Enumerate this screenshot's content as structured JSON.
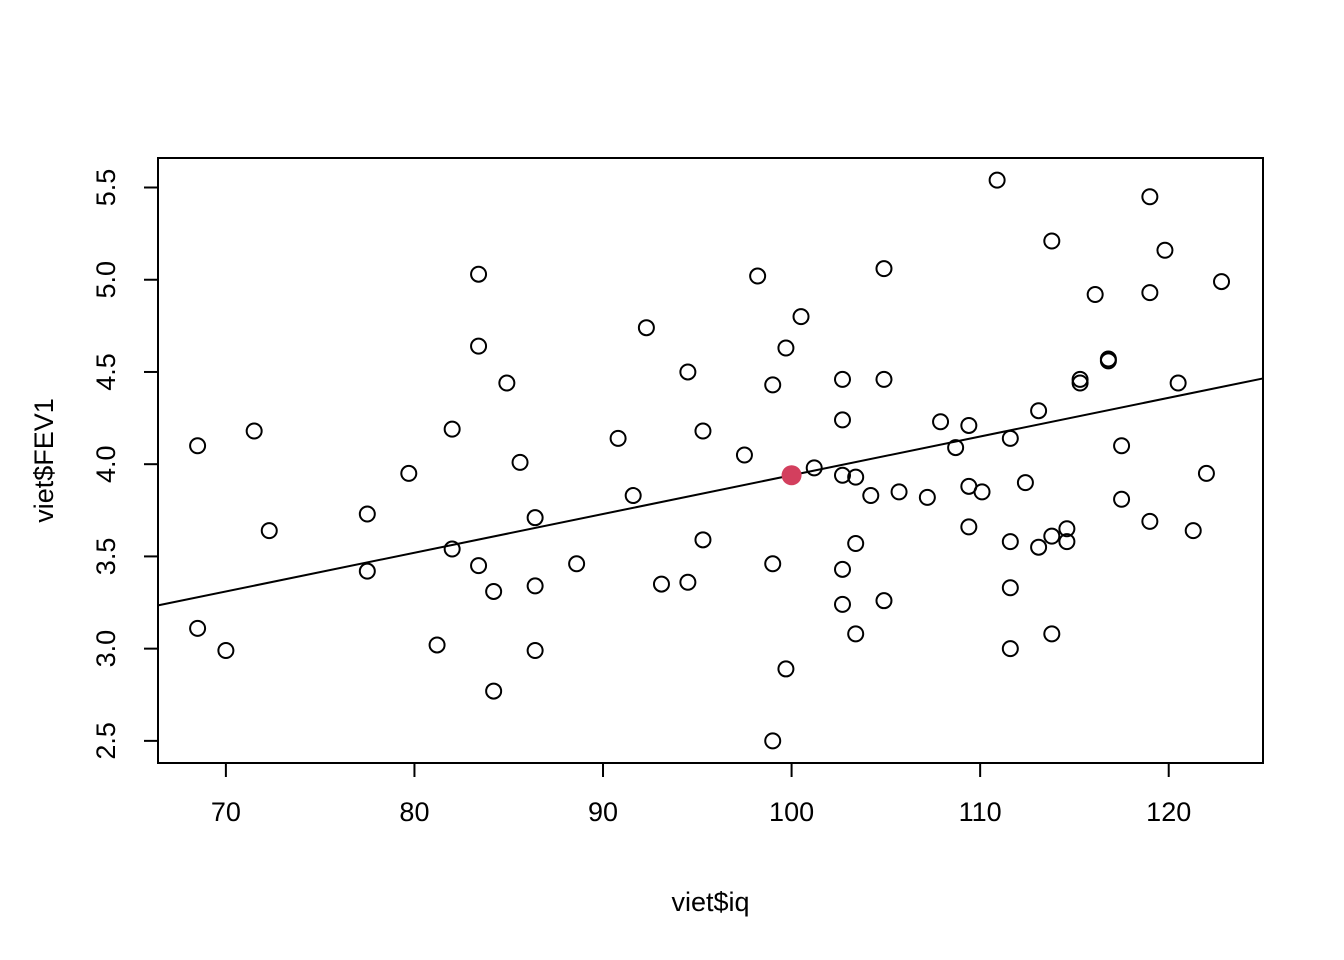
{
  "chart_data": {
    "type": "scatter",
    "xlabel": "viet$iq",
    "ylabel": "viet$FEV1",
    "xlim": [
      66.4,
      125
    ],
    "ylim": [
      2.38,
      5.66
    ],
    "x_ticks": [
      70,
      80,
      90,
      100,
      110,
      120
    ],
    "y_ticks": [
      2.5,
      3.0,
      3.5,
      4.0,
      4.5,
      5.0,
      5.5
    ],
    "x_tick_labels": [
      "70",
      "80",
      "90",
      "100",
      "110",
      "120"
    ],
    "y_tick_labels": [
      "2.5",
      "3.0",
      "3.5",
      "4.0",
      "4.5",
      "5.0",
      "5.5"
    ],
    "grid": false,
    "legend": "none",
    "points": [
      [
        68.5,
        4.1
      ],
      [
        68.5,
        3.11
      ],
      [
        70.0,
        2.99
      ],
      [
        71.5,
        4.18
      ],
      [
        72.3,
        3.64
      ],
      [
        77.5,
        3.73
      ],
      [
        77.5,
        3.42
      ],
      [
        79.7,
        3.95
      ],
      [
        81.2,
        3.02
      ],
      [
        82.0,
        4.19
      ],
      [
        82.0,
        3.54
      ],
      [
        83.4,
        5.03
      ],
      [
        83.4,
        4.64
      ],
      [
        83.4,
        3.45
      ],
      [
        84.2,
        3.31
      ],
      [
        84.2,
        2.77
      ],
      [
        84.9,
        4.44
      ],
      [
        85.6,
        4.01
      ],
      [
        86.4,
        3.71
      ],
      [
        86.4,
        3.34
      ],
      [
        86.4,
        2.99
      ],
      [
        88.6,
        3.46
      ],
      [
        90.8,
        4.14
      ],
      [
        91.6,
        3.83
      ],
      [
        92.3,
        4.74
      ],
      [
        93.1,
        3.35
      ],
      [
        94.5,
        4.5
      ],
      [
        94.5,
        3.36
      ],
      [
        95.3,
        4.18
      ],
      [
        95.3,
        3.59
      ],
      [
        97.5,
        4.05
      ],
      [
        98.2,
        5.02
      ],
      [
        99.0,
        4.43
      ],
      [
        99.0,
        3.46
      ],
      [
        99.0,
        2.5
      ],
      [
        99.7,
        4.63
      ],
      [
        99.7,
        2.89
      ],
      [
        100.5,
        4.8
      ],
      [
        101.2,
        3.98
      ],
      [
        102.7,
        4.46
      ],
      [
        102.7,
        4.24
      ],
      [
        102.7,
        3.94
      ],
      [
        102.7,
        3.43
      ],
      [
        102.7,
        3.24
      ],
      [
        103.4,
        3.93
      ],
      [
        103.4,
        3.57
      ],
      [
        103.4,
        3.08
      ],
      [
        104.2,
        3.83
      ],
      [
        104.9,
        5.06
      ],
      [
        104.9,
        4.46
      ],
      [
        104.9,
        3.26
      ],
      [
        105.7,
        3.85
      ],
      [
        107.2,
        3.82
      ],
      [
        107.9,
        4.23
      ],
      [
        108.7,
        4.09
      ],
      [
        109.4,
        4.21
      ],
      [
        109.4,
        3.88
      ],
      [
        109.4,
        3.66
      ],
      [
        110.1,
        3.85
      ],
      [
        110.9,
        5.54
      ],
      [
        111.6,
        4.14
      ],
      [
        111.6,
        3.58
      ],
      [
        111.6,
        3.33
      ],
      [
        111.6,
        3.0
      ],
      [
        112.4,
        3.9
      ],
      [
        113.1,
        4.29
      ],
      [
        113.1,
        3.55
      ],
      [
        113.8,
        5.21
      ],
      [
        113.8,
        3.61
      ],
      [
        113.8,
        3.08
      ],
      [
        114.6,
        3.65
      ],
      [
        114.6,
        3.58
      ],
      [
        115.3,
        4.46
      ],
      [
        115.3,
        4.44
      ],
      [
        116.1,
        4.92
      ],
      [
        116.8,
        4.57
      ],
      [
        116.8,
        4.56
      ],
      [
        117.5,
        4.1
      ],
      [
        117.5,
        3.81
      ],
      [
        119.0,
        5.45
      ],
      [
        119.0,
        4.93
      ],
      [
        119.0,
        3.69
      ],
      [
        119.8,
        5.16
      ],
      [
        120.5,
        4.44
      ],
      [
        121.3,
        3.64
      ],
      [
        122.0,
        3.95
      ],
      [
        122.8,
        4.99
      ]
    ],
    "highlight_point": {
      "x": 100.0,
      "y": 3.94,
      "color": "#d33f5e"
    },
    "regression_line": {
      "intercept": 1.84,
      "slope": 0.021
    },
    "colors": {
      "points": "#000000",
      "line": "#000000",
      "highlight": "#d33f5e"
    }
  }
}
